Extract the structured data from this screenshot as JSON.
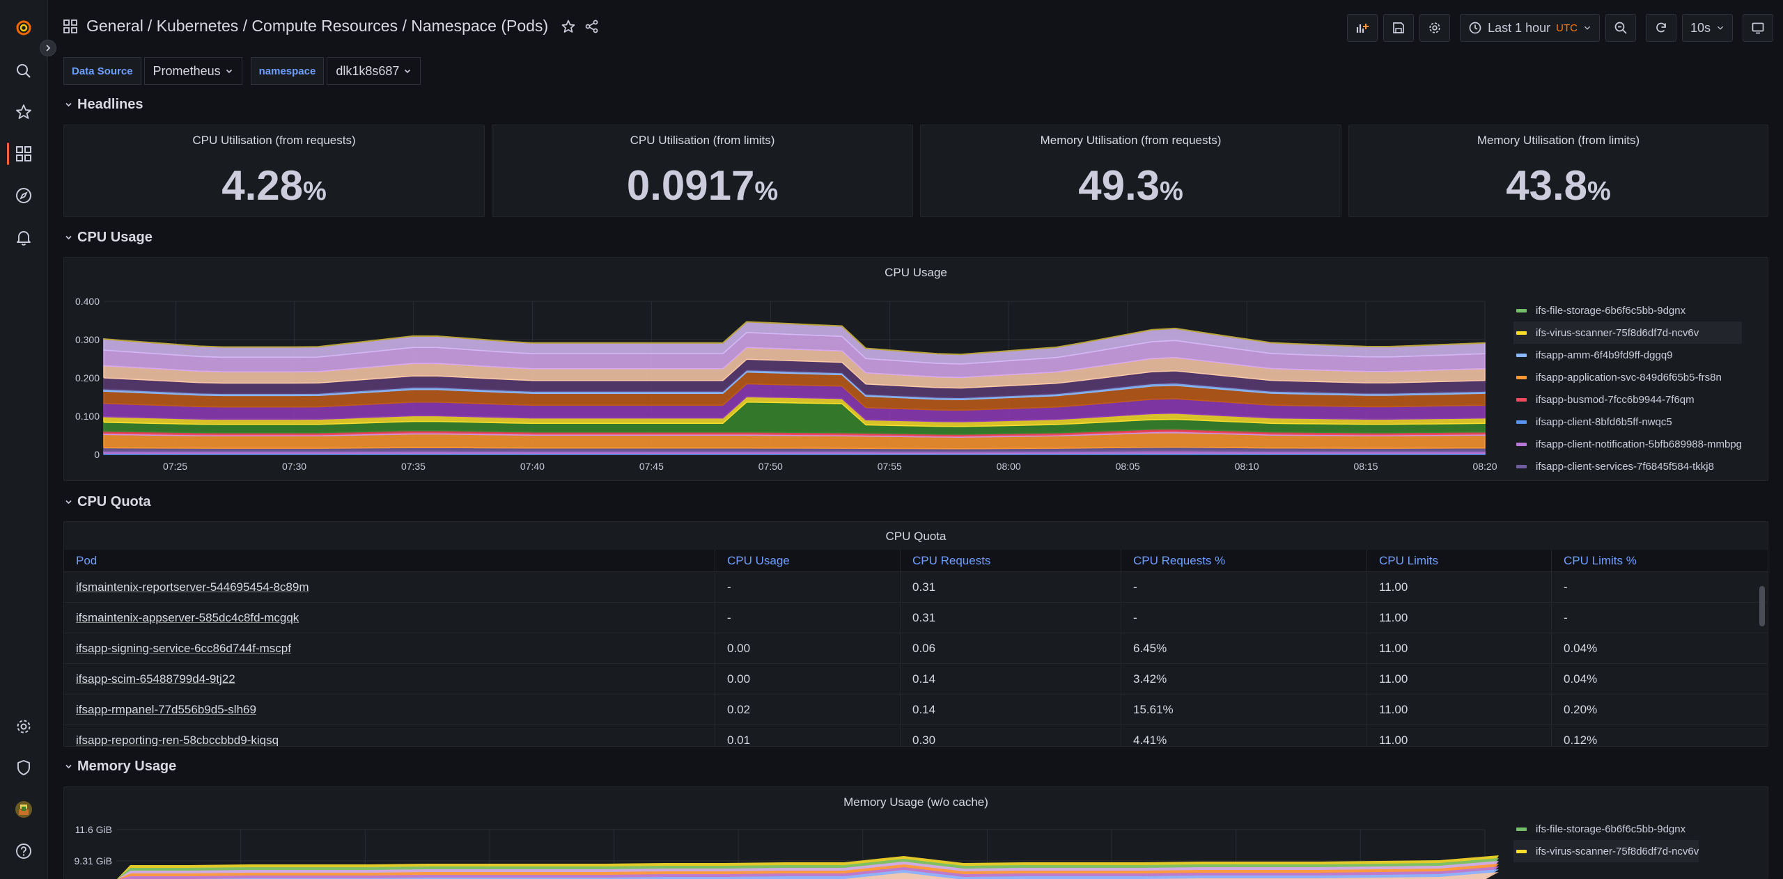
{
  "header": {
    "home": "General",
    "path": " / Kubernetes / Compute Resources / Namespace (Pods)"
  },
  "toolbar": {
    "time_range": "Last 1 hour",
    "timezone": "UTC",
    "refresh": "10s"
  },
  "variables": [
    {
      "label": "Data Source",
      "value": "Prometheus"
    },
    {
      "label": "namespace",
      "value": "dlk1k8s687"
    }
  ],
  "rows": {
    "headlines": "Headlines",
    "cpu_usage": "CPU Usage",
    "cpu_quota": "CPU Quota",
    "memory_usage": "Memory Usage"
  },
  "stats": [
    {
      "title": "CPU Utilisation (from requests)",
      "value": "4.28",
      "unit": "%"
    },
    {
      "title": "CPU Utilisation (from limits)",
      "value": "0.0917",
      "unit": "%"
    },
    {
      "title": "Memory Utilisation (from requests)",
      "value": "49.3",
      "unit": "%"
    },
    {
      "title": "Memory Utilisation (from limits)",
      "value": "43.8",
      "unit": "%"
    }
  ],
  "legend": [
    {
      "name": "ifs-file-storage-6b6f6c5bb-9dgnx",
      "color": "#73bf69"
    },
    {
      "name": "ifs-virus-scanner-75f8d6df7d-ncv6v",
      "color": "#fade2a"
    },
    {
      "name": "ifsapp-amm-6f4b9fd9ff-dggq9",
      "color": "#8ab8ff"
    },
    {
      "name": "ifsapp-application-svc-849d6f65b5-frs8n",
      "color": "#ff9830"
    },
    {
      "name": "ifsapp-busmod-7fcc6b9944-7f6qm",
      "color": "#f2495c"
    },
    {
      "name": "ifsapp-client-8bfd6b5ff-nwqc5",
      "color": "#5794f2"
    },
    {
      "name": "ifsapp-client-notification-5bfb689988-mmbpg",
      "color": "#b877d9"
    },
    {
      "name": "ifsapp-client-services-7f6845f584-tkkj8",
      "color": "#705da0"
    }
  ],
  "cpu_panel": {
    "title": "CPU Usage"
  },
  "quota_panel": {
    "title": "CPU Quota",
    "columns": [
      "Pod",
      "CPU Usage",
      "CPU Requests",
      "CPU Requests %",
      "CPU Limits",
      "CPU Limits %"
    ],
    "rows": [
      [
        "ifsmaintenix-reportserver-544695454-8c89m",
        "-",
        "0.31",
        "-",
        "11.00",
        "-"
      ],
      [
        "ifsmaintenix-appserver-585dc4c8fd-mcgqk",
        "-",
        "0.31",
        "-",
        "11.00",
        "-"
      ],
      [
        "ifsapp-signing-service-6cc86d744f-mscpf",
        "0.00",
        "0.06",
        "6.45%",
        "11.00",
        "0.04%"
      ],
      [
        "ifsapp-scim-65488799d4-9tj22",
        "0.00",
        "0.14",
        "3.42%",
        "11.00",
        "0.04%"
      ],
      [
        "ifsapp-rmpanel-77d556b9d5-slh69",
        "0.02",
        "0.14",
        "15.61%",
        "11.00",
        "0.20%"
      ],
      [
        "ifsapp-reporting-ren-58cbccbbd9-kiqsq",
        "0.01",
        "0.30",
        "4.41%",
        "11.00",
        "0.12%"
      ]
    ]
  },
  "memory_panel": {
    "title": "Memory Usage (w/o cache)"
  },
  "chart_data": [
    {
      "type": "area",
      "title": "CPU Usage",
      "x": [
        "07:22",
        "07:23",
        "07:24",
        "07:25",
        "07:26",
        "07:27",
        "07:28",
        "07:29",
        "07:30",
        "07:31",
        "07:32",
        "07:33",
        "07:34",
        "07:35",
        "07:36",
        "07:37",
        "07:38",
        "07:39",
        "07:40",
        "07:41",
        "07:42",
        "07:43",
        "07:44",
        "07:45",
        "07:46",
        "07:47",
        "07:48",
        "07:49",
        "07:50",
        "07:51",
        "07:52",
        "07:53",
        "07:54",
        "07:55",
        "07:56",
        "07:57",
        "07:58",
        "07:59",
        "08:00",
        "08:01",
        "08:02",
        "08:03",
        "08:04",
        "08:05",
        "08:06",
        "08:07",
        "08:08",
        "08:09",
        "08:10",
        "08:11",
        "08:12",
        "08:13",
        "08:14",
        "08:15",
        "08:16",
        "08:17",
        "08:18",
        "08:19",
        "08:20"
      ],
      "x_ticks": [
        "07:25",
        "07:30",
        "07:35",
        "07:40",
        "07:45",
        "07:50",
        "07:55",
        "08:00",
        "08:05",
        "08:10",
        "08:15",
        "08:20"
      ],
      "y_ticks": [
        "0",
        "0.100",
        "0.200",
        "0.300",
        "0.400"
      ],
      "ylim": [
        0,
        0.4
      ],
      "stacked": true,
      "total_approx": [
        0.29,
        0.27,
        0.27,
        0.3,
        0.28,
        0.28,
        0.28,
        0.27,
        0.25,
        0.27,
        0.32,
        0.28,
        0.27,
        0.28
      ],
      "legend_position": "right"
    },
    {
      "type": "area",
      "title": "Memory Usage (w/o cache)",
      "y_ticks": [
        "9.31 GiB",
        "11.6 GiB"
      ],
      "stacked": true
    }
  ]
}
